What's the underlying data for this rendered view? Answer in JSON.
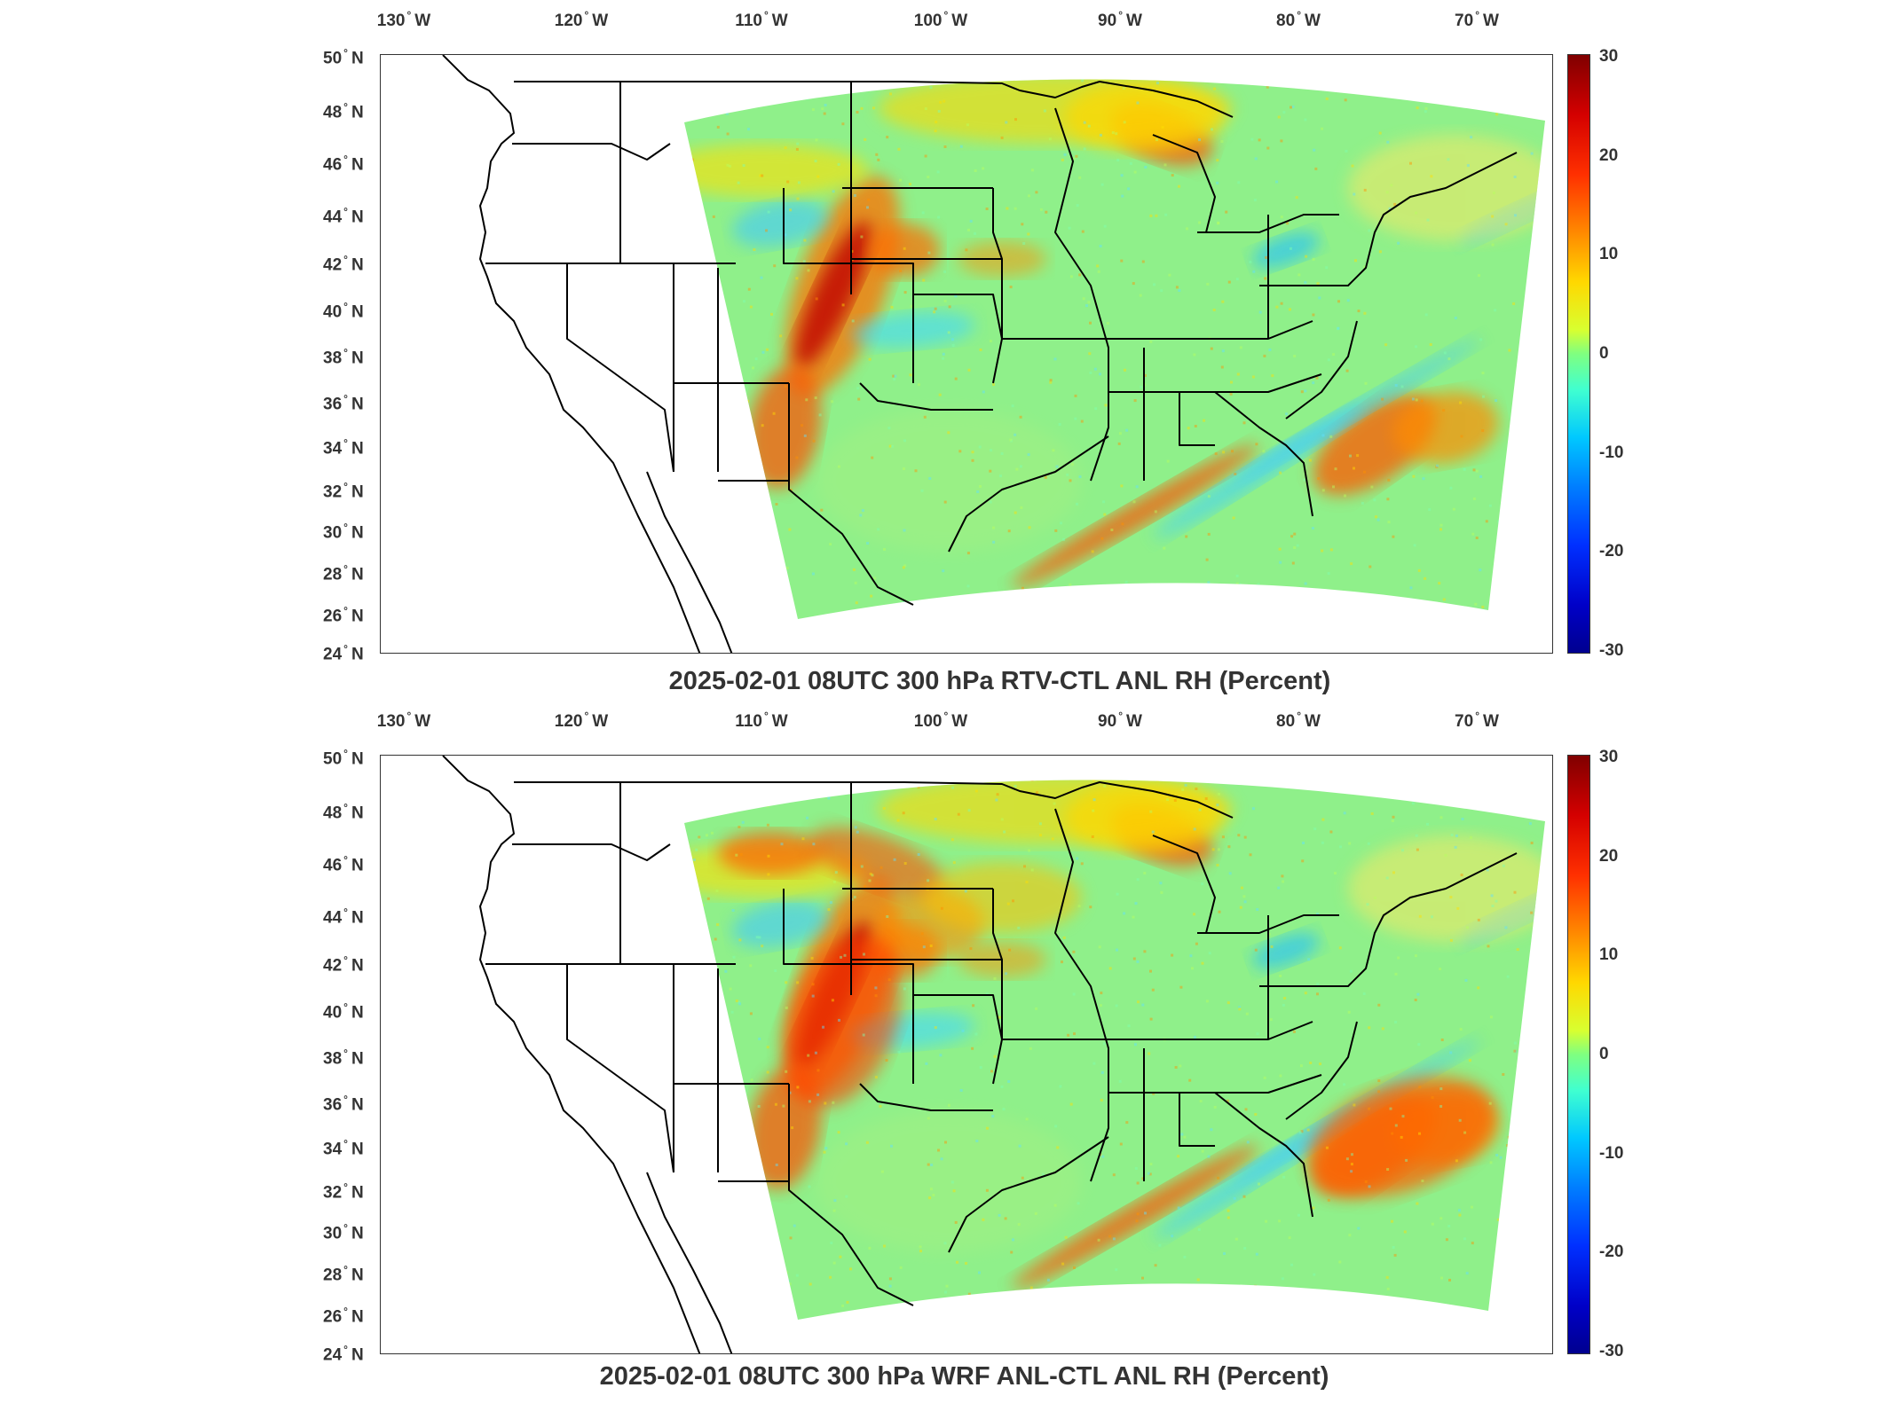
{
  "longitude_labels": [
    {
      "value": "130",
      "hemi": "W"
    },
    {
      "value": "120",
      "hemi": "W"
    },
    {
      "value": "110",
      "hemi": "W"
    },
    {
      "value": "100",
      "hemi": "W"
    },
    {
      "value": "90",
      "hemi": "W"
    },
    {
      "value": "80",
      "hemi": "W"
    },
    {
      "value": "70",
      "hemi": "W"
    }
  ],
  "latitude_labels": [
    {
      "value": "50",
      "hemi": "N"
    },
    {
      "value": "48",
      "hemi": "N"
    },
    {
      "value": "46",
      "hemi": "N"
    },
    {
      "value": "44",
      "hemi": "N"
    },
    {
      "value": "42",
      "hemi": "N"
    },
    {
      "value": "40",
      "hemi": "N"
    },
    {
      "value": "38",
      "hemi": "N"
    },
    {
      "value": "36",
      "hemi": "N"
    },
    {
      "value": "34",
      "hemi": "N"
    },
    {
      "value": "32",
      "hemi": "N"
    },
    {
      "value": "30",
      "hemi": "N"
    },
    {
      "value": "28",
      "hemi": "N"
    },
    {
      "value": "26",
      "hemi": "N"
    },
    {
      "value": "24",
      "hemi": "N"
    }
  ],
  "colorbar": {
    "ticks": [
      "30",
      "20",
      "10",
      "0",
      "-10",
      "-20",
      "-30"
    ],
    "range": [
      -30,
      30
    ],
    "colors": [
      "#800000",
      "#ff3000",
      "#ffd800",
      "#7fff80",
      "#00c8ff",
      "#0030ff",
      "#00008f"
    ]
  },
  "panels": [
    {
      "title": "2025-02-01 08UTC 300 hPa RTV-CTL ANL RH (Percent)"
    },
    {
      "title": "2025-02-01 08UTC 300 hPa WRF ANL-CTL ANL RH (Percent)"
    }
  ]
}
